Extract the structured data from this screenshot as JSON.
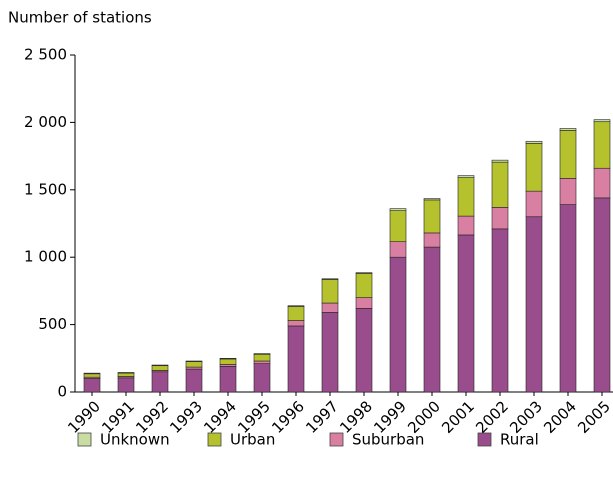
{
  "chart_data": {
    "type": "bar",
    "stacked": true,
    "y_axis_title": "Number of stations",
    "categories": [
      "1990",
      "1991",
      "1992",
      "1993",
      "1994",
      "1995",
      "1996",
      "1997",
      "1998",
      "1999",
      "2000",
      "2001",
      "2002",
      "2003",
      "2004",
      "2005"
    ],
    "series": [
      {
        "name": "Unknown",
        "color": "#c9dca2",
        "values": [
          5,
          5,
          5,
          5,
          5,
          5,
          5,
          5,
          5,
          15,
          10,
          15,
          15,
          15,
          15,
          15
        ]
      },
      {
        "name": "Urban",
        "color": "#b5c22e",
        "values": [
          25,
          25,
          35,
          40,
          40,
          50,
          105,
          175,
          180,
          230,
          245,
          285,
          335,
          355,
          355,
          345
        ]
      },
      {
        "name": "Suburban",
        "color": "#d97fa2",
        "values": [
          10,
          10,
          10,
          15,
          15,
          20,
          40,
          70,
          80,
          115,
          105,
          140,
          160,
          190,
          195,
          220
        ]
      },
      {
        "name": "Rural",
        "color": "#9a4d8c",
        "values": [
          100,
          105,
          150,
          170,
          190,
          210,
          490,
          590,
          620,
          1000,
          1075,
          1165,
          1210,
          1300,
          1390,
          1440
        ]
      }
    ],
    "ylim": [
      0,
      2500
    ],
    "yticks": [
      0,
      500,
      {
        "value": 1000,
        "label": "1 000"
      },
      {
        "value": 1500,
        "label": "1 500"
      },
      {
        "value": 2000,
        "label": "2 000"
      },
      {
        "value": 2500,
        "label": "2 500"
      }
    ],
    "legend": "bottom"
  }
}
